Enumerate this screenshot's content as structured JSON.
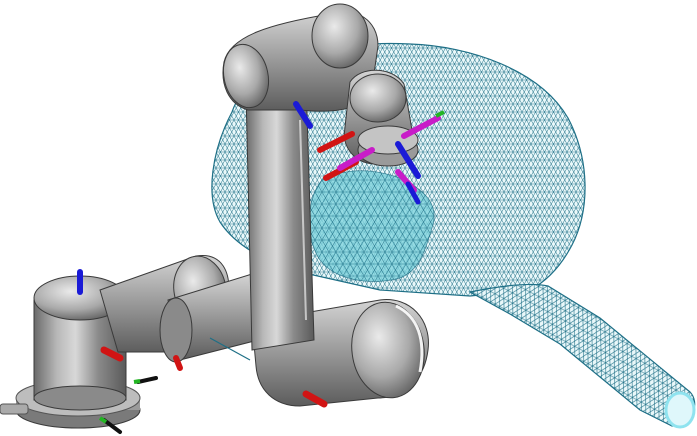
{
  "scene": {
    "background": "#ffffff",
    "colors": {
      "mesh_stroke": "#1e6f86",
      "mesh_fill": "#d9f3f6",
      "contact_patch": "#7fd3dd",
      "tube_rim": "#8fe3ef",
      "robot_light": "#c9c9c9",
      "robot_mid": "#8f8f8f",
      "robot_dark": "#5c5c5c",
      "robot_edge": "#3a3a3a",
      "axis_x": "#d11414",
      "axis_y": "#22b522",
      "axis_z": "#1a1ad6",
      "tool_axis": "#c81cc8"
    }
  }
}
